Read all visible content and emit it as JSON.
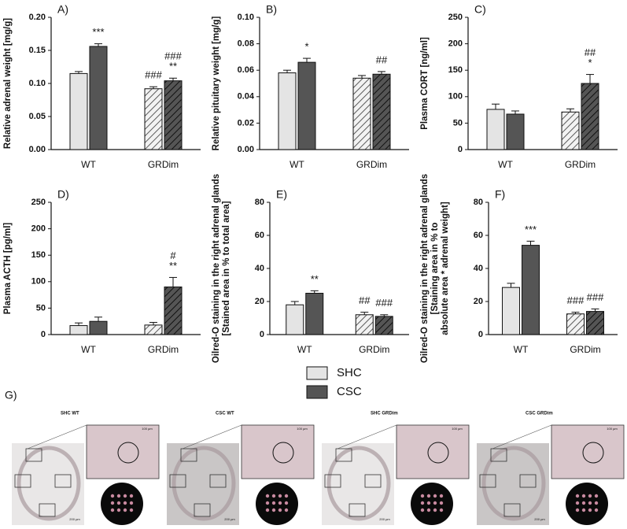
{
  "chart_data": [
    {
      "type": "bar",
      "panel": "A)",
      "ylabel": [
        "Relative adrenal weight [mg/g]"
      ],
      "categories": [
        "WT",
        "GRDim"
      ],
      "ylim": [
        0,
        0.2
      ],
      "yticks": [
        {
          "value": 0,
          "label": "0.00"
        },
        {
          "value": 0.05,
          "label": "0.05"
        },
        {
          "value": 0.1,
          "label": "0.10"
        },
        {
          "value": 0.15,
          "label": "0.15"
        },
        {
          "value": 0.2,
          "label": "0.20"
        }
      ],
      "series": [
        {
          "values": [
            0.115,
            0.092
          ],
          "errors": [
            0.003,
            0.003
          ],
          "marks": [
            [],
            [
              "###"
            ]
          ]
        },
        {
          "values": [
            0.156,
            0.104
          ],
          "errors": [
            0.004,
            0.004
          ],
          "marks": [
            [
              "***"
            ],
            [
              "###",
              "**"
            ]
          ]
        }
      ]
    },
    {
      "type": "bar",
      "panel": "B)",
      "ylabel": [
        "Relative pituitary weight [mg/g]"
      ],
      "categories": [
        "WT",
        "GRDim"
      ],
      "ylim": [
        0,
        0.1
      ],
      "yticks": [
        {
          "value": 0,
          "label": "0.00"
        },
        {
          "value": 0.02,
          "label": "0.02"
        },
        {
          "value": 0.04,
          "label": "0.04"
        },
        {
          "value": 0.06,
          "label": "0.06"
        },
        {
          "value": 0.08,
          "label": "0.08"
        },
        {
          "value": 0.1,
          "label": "0.10"
        }
      ],
      "series": [
        {
          "values": [
            0.058,
            0.054
          ],
          "errors": [
            0.002,
            0.002
          ],
          "marks": [
            [],
            []
          ]
        },
        {
          "values": [
            0.066,
            0.057
          ],
          "errors": [
            0.003,
            0.002
          ],
          "marks": [
            [
              "*"
            ],
            [
              "##"
            ]
          ]
        }
      ]
    },
    {
      "type": "bar",
      "panel": "C)",
      "ylabel": [
        "Plasma CORT [ng/ml]"
      ],
      "categories": [
        "WT",
        "GRDim"
      ],
      "ylim": [
        0,
        250
      ],
      "yticks": [
        0,
        50,
        100,
        150,
        200,
        250
      ],
      "series": [
        {
          "values": [
            76,
            71
          ],
          "errors": [
            10,
            6
          ],
          "marks": [
            [],
            []
          ]
        },
        {
          "values": [
            67,
            125
          ],
          "errors": [
            6,
            17
          ],
          "marks": [
            [],
            [
              "##",
              "*"
            ]
          ]
        }
      ]
    },
    {
      "type": "bar",
      "panel": "D)",
      "ylabel": [
        "Plasma ACTH [pg/ml]"
      ],
      "categories": [
        "WT",
        "GRDim"
      ],
      "ylim": [
        0,
        250
      ],
      "yticks": [
        0,
        50,
        100,
        150,
        200,
        250
      ],
      "series": [
        {
          "values": [
            17,
            18
          ],
          "errors": [
            5,
            5
          ],
          "marks": [
            [],
            []
          ]
        },
        {
          "values": [
            25,
            90
          ],
          "errors": [
            8,
            18
          ],
          "marks": [
            [],
            [
              "#",
              "**"
            ]
          ]
        }
      ]
    },
    {
      "type": "bar",
      "panel": "E)",
      "ylabel": [
        "Oilred-O staining in the right adrenal glands",
        "[Stained area in % to total area]"
      ],
      "categories": [
        "WT",
        "GRDim"
      ],
      "ylim": [
        0,
        80
      ],
      "yticks": [
        0,
        20,
        40,
        60,
        80
      ],
      "series": [
        {
          "values": [
            18,
            12
          ],
          "errors": [
            2,
            1.5
          ],
          "marks": [
            [],
            [
              "##"
            ]
          ]
        },
        {
          "values": [
            25,
            11
          ],
          "errors": [
            1.5,
            1
          ],
          "marks": [
            [
              "**"
            ],
            [
              "###"
            ]
          ]
        }
      ]
    },
    {
      "type": "bar",
      "panel": "F)",
      "ylabel": [
        "Oilred-O staining in the right adrenal glands",
        "[Staining area in % to",
        "absolute area * adrenal weight]"
      ],
      "categories": [
        "WT",
        "GRDim"
      ],
      "ylim": [
        0,
        80
      ],
      "yticks": [
        0,
        20,
        40,
        60,
        80
      ],
      "series": [
        {
          "values": [
            28.5,
            12.5
          ],
          "errors": [
            2.5,
            1
          ],
          "marks": [
            [],
            [
              "###"
            ]
          ]
        },
        {
          "values": [
            54,
            14
          ],
          "errors": [
            2.5,
            1.5
          ],
          "marks": [
            [
              "***"
            ],
            [
              "###"
            ]
          ]
        }
      ]
    }
  ],
  "legend": [
    {
      "name": "SHC",
      "color": "#e4e4e4"
    },
    {
      "name": "CSC",
      "color": "#555555"
    }
  ],
  "hatch": [
    false,
    true
  ],
  "figure_g": {
    "label": "G)",
    "panels": [
      "SHC WT",
      "CSC WT",
      "SHC GRDim",
      "CSC GRDim"
    ],
    "scale_bars": [
      "100 µm",
      "200 µm"
    ]
  }
}
